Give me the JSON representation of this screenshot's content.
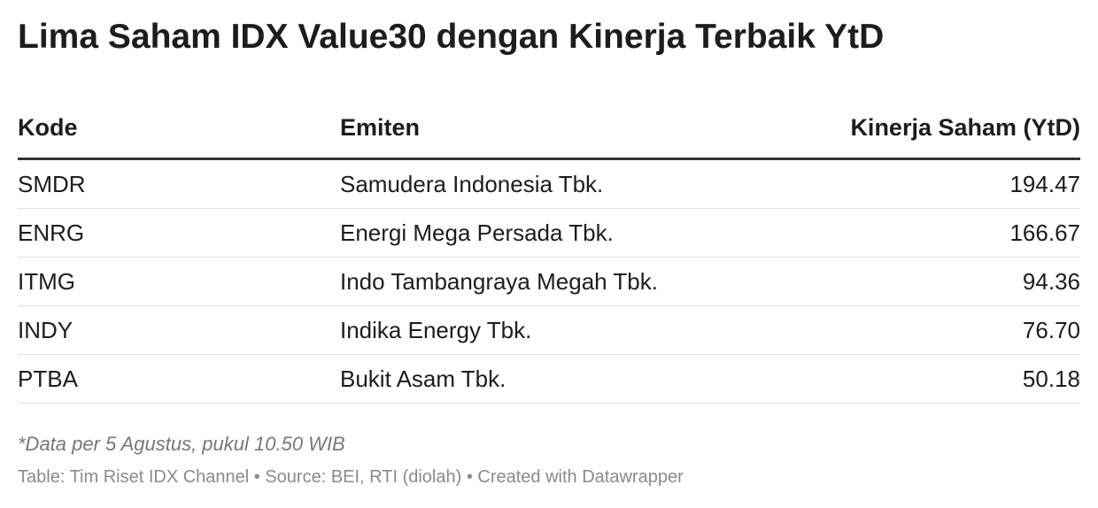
{
  "header": {
    "title": "Lima Saham IDX Value30 dengan Kinerja Terbaik YtD"
  },
  "table": {
    "columns": [
      "Kode",
      "Emiten",
      "Kinerja Saham (YtD)"
    ],
    "rows": [
      [
        "SMDR",
        "Samudera Indonesia Tbk.",
        "194.47"
      ],
      [
        "ENRG",
        "Energi Mega Persada Tbk.",
        "166.67"
      ],
      [
        "ITMG",
        "Indo Tambangraya Megah Tbk.",
        "94.36"
      ],
      [
        "INDY",
        "Indika Energy Tbk.",
        "76.70"
      ],
      [
        "PTBA",
        "Bukit Asam Tbk.",
        "50.18"
      ]
    ]
  },
  "footer": {
    "note": "*Data per 5 Agustus, pukul 10.50 WIB",
    "credit": "Table: Tim Riset IDX Channel • Source: BEI, RTI (diolah) • Created with Datawrapper"
  }
}
